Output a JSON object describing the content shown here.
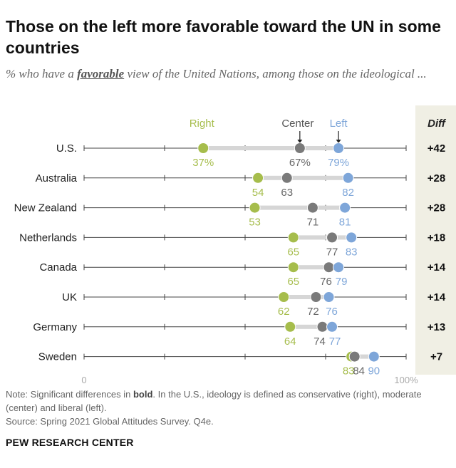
{
  "header": {
    "title": "Those on the left more favorable toward the UN in some countries",
    "subtitle_pre": "% who have a ",
    "subtitle_em": "favorable",
    "subtitle_post": " view of the United Nations, among those on the ideological ..."
  },
  "footer": {
    "note_pre": "Note: Significant differences in ",
    "note_bold": "bold",
    "note_post": ". In the U.S., ideology is defined as conservative (right), moderate (center) and liberal (left).",
    "source": "Source: Spring 2021 Global Attitudes Survey. Q4e.",
    "brand": "PEW RESEARCH CENTER"
  },
  "colors": {
    "right": "#a6bd4c",
    "center": "#7a7a7a",
    "left": "#7ea6d9",
    "range_bar": "#d6d6d6",
    "diff_bg": "#f0efe4"
  },
  "chart_data": {
    "type": "dot",
    "xlim": [
      0,
      100
    ],
    "x_tick_labels": [
      "0",
      "100%"
    ],
    "series_labels": [
      "Right",
      "Center",
      "Left"
    ],
    "diff_header": "Diff",
    "categories": [
      "U.S.",
      "Australia",
      "New Zealand",
      "Netherlands",
      "Canada",
      "UK",
      "Germany",
      "Sweden"
    ],
    "series": [
      {
        "name": "Right",
        "values": [
          37,
          54,
          53,
          65,
          65,
          62,
          64,
          83
        ]
      },
      {
        "name": "Center",
        "values": [
          67,
          63,
          71,
          77,
          76,
          72,
          74,
          84
        ]
      },
      {
        "name": "Left",
        "values": [
          79,
          82,
          81,
          83,
          79,
          76,
          77,
          90
        ]
      }
    ],
    "diff": [
      "+42",
      "+28",
      "+28",
      "+18",
      "+14",
      "+14",
      "+13",
      "+7"
    ],
    "first_row_value_labels": [
      "37%",
      "67%",
      "79%"
    ]
  }
}
